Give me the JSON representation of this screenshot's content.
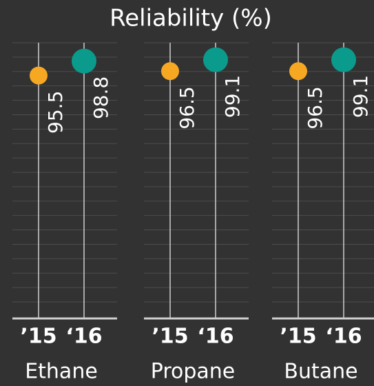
{
  "chart_data": {
    "type": "dot",
    "title": "Reliability (%)",
    "categories": [
      "’15",
      "‘16"
    ],
    "colors": [
      "#f7a823",
      "#0a9b8c"
    ],
    "ylim": [
      40,
      103
    ],
    "series": [
      {
        "name": "Ethane",
        "values": [
          95.5,
          98.8
        ]
      },
      {
        "name": "Propane",
        "values": [
          96.5,
          99.1
        ]
      },
      {
        "name": "Butane",
        "values": [
          96.5,
          99.1
        ]
      }
    ]
  }
}
